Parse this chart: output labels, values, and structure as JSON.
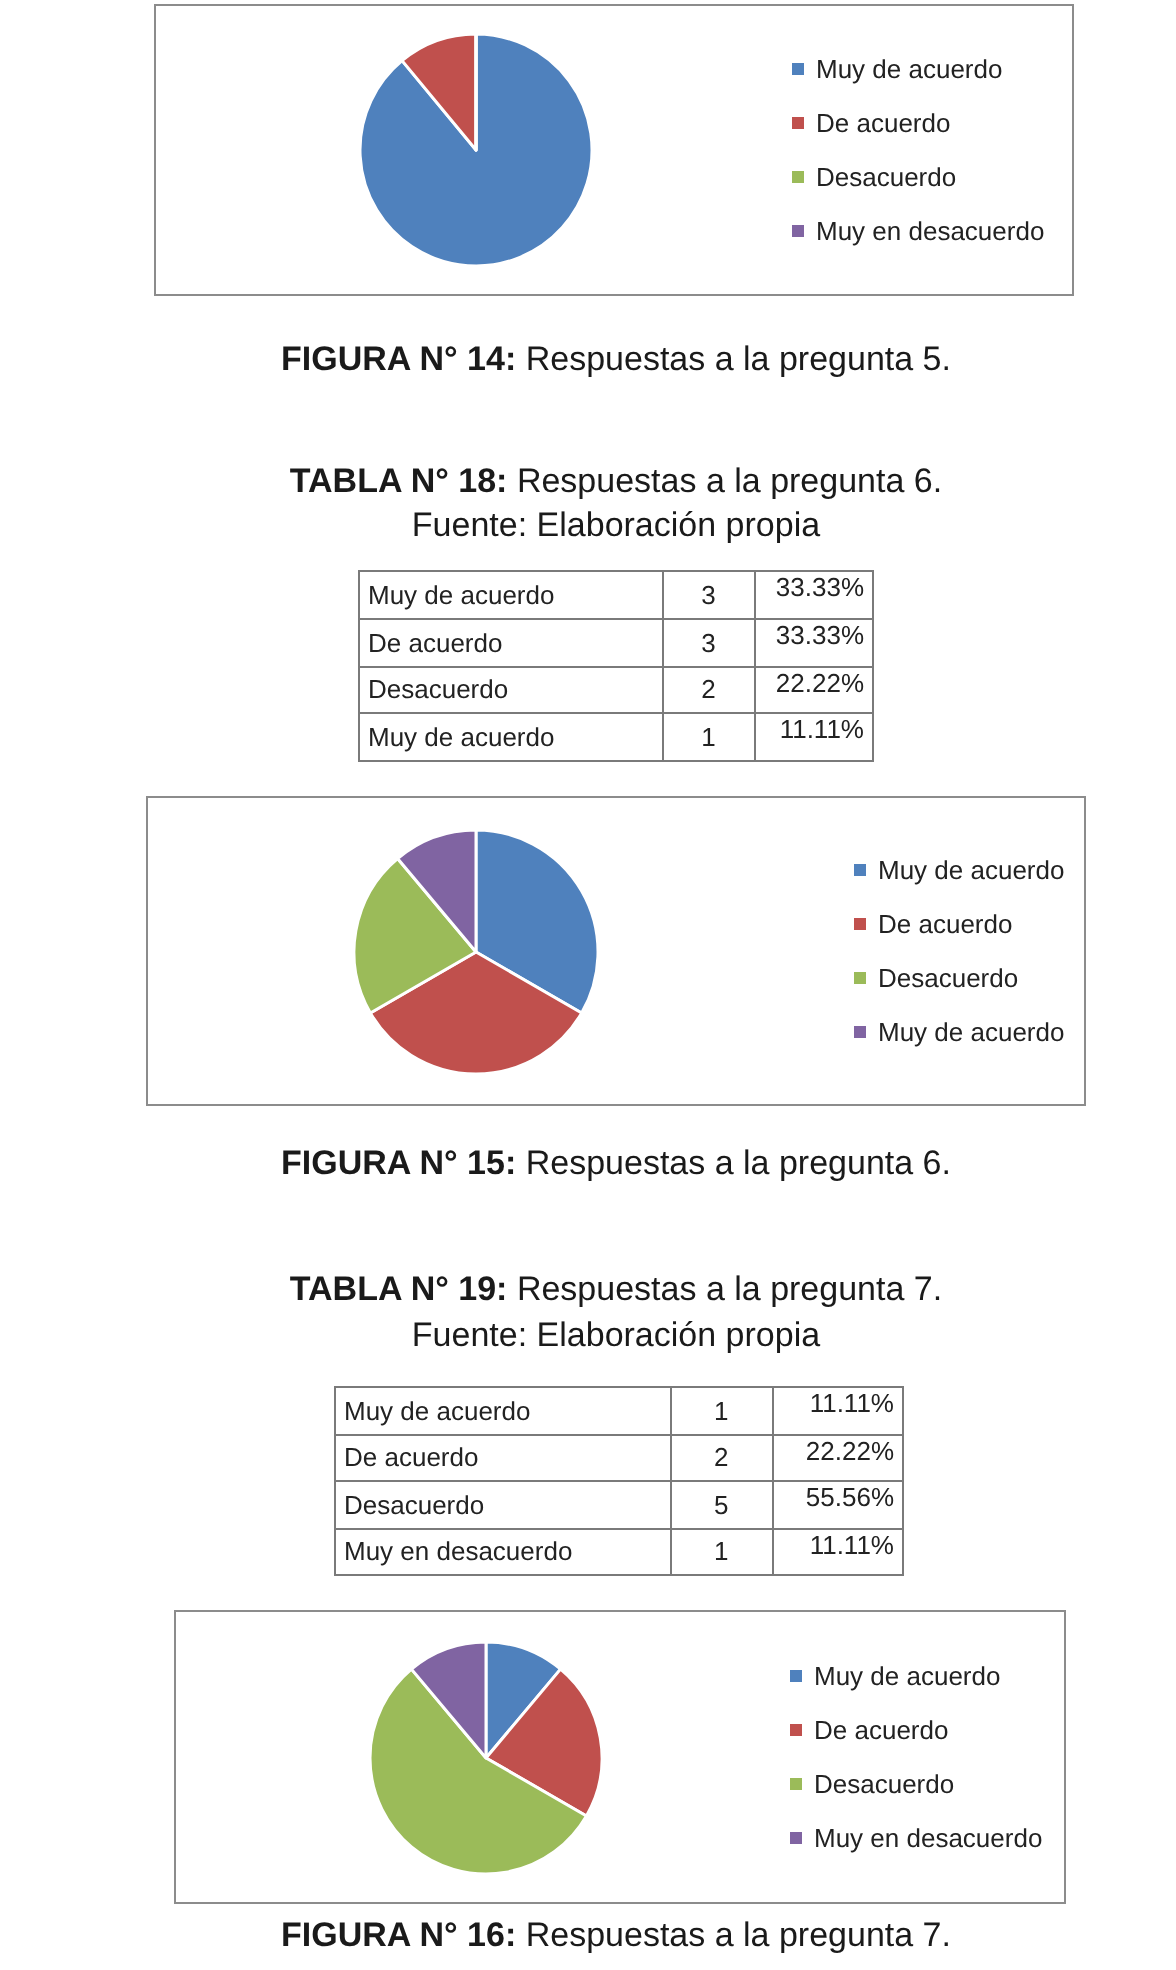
{
  "chart_data": [
    {
      "type": "pie",
      "title": "FIGURA N° 14: Respuestas a la pregunta 5.",
      "categories": [
        "Muy de acuerdo",
        "De acuerdo",
        "Desacuerdo",
        "Muy en desacuerdo"
      ],
      "values": [
        89,
        11,
        0,
        0
      ],
      "colors": [
        "#4f81bd",
        "#c0504d",
        "#9bbb59",
        "#8064a2"
      ],
      "legend": "right"
    },
    {
      "type": "other",
      "title": "TABLA N° 18: Respuestas a la pregunta 6.",
      "annotations": [
        "Fuente: Elaboración propia"
      ],
      "categories": [
        "Muy de acuerdo",
        "De acuerdo",
        "Desacuerdo",
        "Muy de acuerdo"
      ],
      "series": [
        {
          "values": [
            3,
            3,
            2,
            1
          ]
        },
        {
          "values": [
            33.33,
            33.33,
            22.22,
            11.11
          ],
          "value_labels": [
            "33.33%",
            "33.33%",
            "22.22%",
            "11.11%"
          ]
        }
      ],
      "data_labels": true
    },
    {
      "type": "pie",
      "title": "FIGURA N° 15: Respuestas a la pregunta 6.",
      "categories": [
        "Muy de acuerdo",
        "De acuerdo",
        "Desacuerdo",
        "Muy de acuerdo"
      ],
      "values": [
        33.33,
        33.33,
        22.22,
        11.11
      ],
      "colors": [
        "#4f81bd",
        "#c0504d",
        "#9bbb59",
        "#8064a2"
      ],
      "legend": "right"
    },
    {
      "type": "other",
      "title": "TABLA N° 19: Respuestas a la pregunta 7.",
      "annotations": [
        "Fuente: Elaboración propia"
      ],
      "categories": [
        "Muy de acuerdo",
        "De acuerdo",
        "Desacuerdo",
        "Muy en desacuerdo"
      ],
      "series": [
        {
          "values": [
            1,
            2,
            5,
            1
          ]
        },
        {
          "values": [
            11.11,
            22.22,
            55.56,
            11.11
          ],
          "value_labels": [
            "11.11%",
            "22.22%",
            "55.56%",
            "11.11%"
          ]
        }
      ],
      "data_labels": true
    },
    {
      "type": "pie",
      "title": "FIGURA N° 16: Respuestas a la pregunta 7.",
      "categories": [
        "Muy de acuerdo",
        "De acuerdo",
        "Desacuerdo",
        "Muy en desacuerdo"
      ],
      "values": [
        11.11,
        22.22,
        55.56,
        11.11
      ],
      "colors": [
        "#4f81bd",
        "#c0504d",
        "#9bbb59",
        "#8064a2"
      ],
      "legend": "right"
    }
  ]
}
